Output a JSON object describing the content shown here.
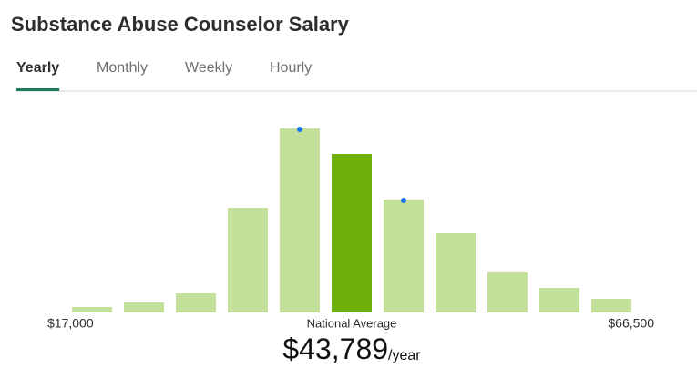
{
  "chart_data": {
    "type": "bar",
    "title": "Substance Abuse Counselor Salary",
    "tabs": [
      "Yearly",
      "Monthly",
      "Weekly",
      "Hourly"
    ],
    "active_tab": 0,
    "values": [
      6,
      11,
      21,
      115,
      202,
      174,
      124,
      87,
      44,
      27,
      15
    ],
    "ylim": [
      0,
      210
    ],
    "color": "#c2e09a",
    "highlight_index": 5,
    "highlight_color": "#6eb00a",
    "marker_indices": [
      4,
      6
    ],
    "marker_color": "#1a73e8",
    "min_label": "$17,000",
    "max_label": "$66,500",
    "average_caption": "National Average",
    "average_value": "$43,789",
    "average_unit": "/year"
  }
}
